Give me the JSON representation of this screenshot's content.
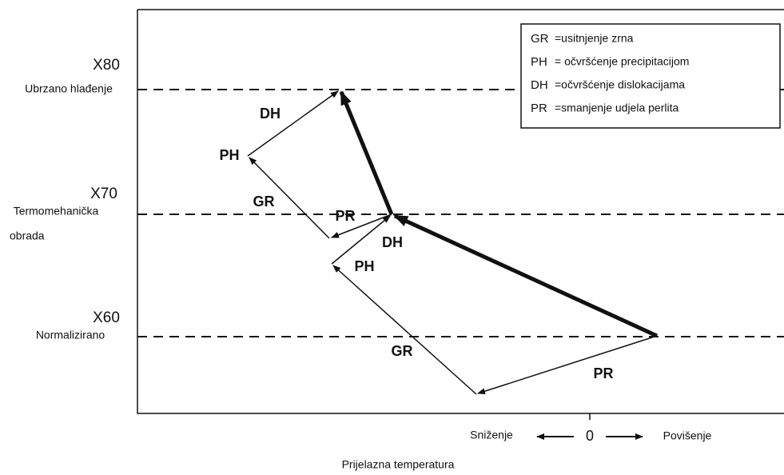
{
  "levels": [
    {
      "code": "X80",
      "label": [
        "Ubrzano hlađenje"
      ]
    },
    {
      "code": "X70",
      "label": [
        "Termomehanička",
        "obrada"
      ]
    },
    {
      "code": "X60",
      "label": [
        "Normalizirano"
      ]
    }
  ],
  "arrow_labels": [
    "PR",
    "GR",
    "PH",
    "DH",
    "PR",
    "GR",
    "PH",
    "DH"
  ],
  "legend": [
    {
      "abbr": "GR",
      "text": "=usitnjenje zrna"
    },
    {
      "abbr": "PH",
      "text": "= očvršćenje precipitacijom"
    },
    {
      "abbr": "DH",
      "text": "=očvršćenje dislokacijama"
    },
    {
      "abbr": "PR",
      "text": "=smanjenje udjela perlita"
    }
  ],
  "x_axis": {
    "decrease": "Sniženje",
    "zero": "0",
    "increase": "Povišenje",
    "title": "Prijelazna temperatura"
  }
}
